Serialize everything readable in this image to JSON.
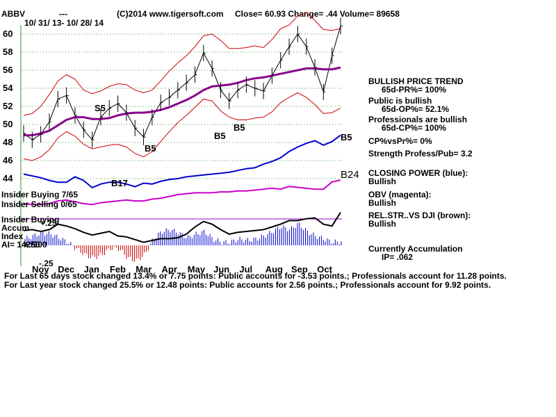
{
  "header": {
    "symbol": "ABBV",
    "dashes": "---",
    "site": "(C)2014 www.tigersoft.com",
    "quote": "Close=  60.93  Change= .44 Volume= 89658",
    "date_range": "10/ 31/ 13- 10/ 28/ 14"
  },
  "chart_data": {
    "type": "line",
    "y_ticks": [
      "60",
      "58",
      "56",
      "54",
      "52",
      "50",
      "48",
      "46",
      "44"
    ],
    "ylim": [
      43,
      61
    ],
    "months": [
      "Nov",
      "Dec",
      "Jan",
      "Feb",
      "Mar",
      "Apr",
      "May",
      "Jun",
      "Jul",
      "Aug",
      "Sep",
      "Oct"
    ],
    "grid": true,
    "series": [
      {
        "color": "#000000",
        "values": [
          49.0,
          48.3,
          48.9,
          50.3,
          52.8,
          53.2,
          51.0,
          49.4,
          48.3,
          50.8,
          51.8,
          52.3,
          51.3,
          49.6,
          48.6,
          50.8,
          52.4,
          53.0,
          53.8,
          54.6,
          55.5,
          57.9,
          56.2,
          53.8,
          52.6,
          53.8,
          54.4,
          54.0,
          53.7,
          55.4,
          57.1,
          58.6,
          60.0,
          58.6,
          56.3,
          53.6,
          57.6,
          60.9
        ]
      },
      {
        "color": "#8b008b",
        "values": [
          48.8,
          48.8,
          49.0,
          49.3,
          49.9,
          50.5,
          50.8,
          50.8,
          50.6,
          50.6,
          50.7,
          51.0,
          51.2,
          51.3,
          51.3,
          51.4,
          51.6,
          51.9,
          52.3,
          52.7,
          53.2,
          53.8,
          54.2,
          54.3,
          54.4,
          54.6,
          54.9,
          55.1,
          55.2,
          55.4,
          55.6,
          55.8,
          56.0,
          56.2,
          56.2,
          56.1,
          56.1,
          56.3
        ]
      },
      {
        "color": "#cc0000",
        "values": [
          51.0,
          51.2,
          52.0,
          53.3,
          54.8,
          55.5,
          55.0,
          53.8,
          53.4,
          53.7,
          54.2,
          54.5,
          54.4,
          53.8,
          53.5,
          53.8,
          54.8,
          55.9,
          56.8,
          57.6,
          58.6,
          59.8,
          60.0,
          59.3,
          58.4,
          58.4,
          58.5,
          58.7,
          58.5,
          59.4,
          60.6,
          61.0,
          62.0,
          62.4,
          61.5,
          60.5,
          60.4,
          60.6
        ]
      },
      {
        "color": "#cc0000",
        "values": [
          46.2,
          46.0,
          46.4,
          47.2,
          48.5,
          49.2,
          48.7,
          47.8,
          47.3,
          47.5,
          47.7,
          47.8,
          47.5,
          46.8,
          46.4,
          47.0,
          48.1,
          49.2,
          50.2,
          51.0,
          51.9,
          52.8,
          52.6,
          51.5,
          50.8,
          50.5,
          50.5,
          50.7,
          50.8,
          51.4,
          52.4,
          53.0,
          53.5,
          53.0,
          52.2,
          51.2,
          51.3,
          51.8
        ]
      },
      {
        "color": "#0000cc",
        "values": [
          44.5,
          44.3,
          44.1,
          43.8,
          43.6,
          43.6,
          44.2,
          43.8,
          43.0,
          43.4,
          43.6,
          43.6,
          43.4,
          43.1,
          43.5,
          43.4,
          43.7,
          43.9,
          44.0,
          44.2,
          44.3,
          44.4,
          44.5,
          44.6,
          44.7,
          44.9,
          45.1,
          45.2,
          45.6,
          45.9,
          46.3,
          47.0,
          47.5,
          47.9,
          48.2,
          47.7,
          48.1,
          48.8
        ]
      },
      {
        "color": "#cc00cc",
        "values": [
          42.0,
          41.9,
          41.9,
          42.0,
          42.3,
          42.4,
          42.2,
          42.0,
          41.9,
          42.1,
          42.2,
          42.3,
          42.4,
          42.3,
          42.3,
          42.5,
          42.6,
          42.8,
          43.0,
          43.1,
          43.2,
          43.2,
          43.2,
          43.3,
          43.3,
          43.4,
          43.4,
          43.5,
          43.6,
          43.7,
          43.6,
          43.9,
          43.8,
          43.7,
          43.6,
          43.6,
          44.4,
          44.6
        ]
      },
      {
        "color": "#000000",
        "values": [
          40.1,
          40.2,
          40.0,
          40.2,
          40.8,
          40.6,
          40.3,
          39.9,
          39.6,
          39.8,
          40.0,
          39.5,
          39.4,
          39.1,
          38.8,
          39.0,
          39.2,
          39.2,
          39.3,
          39.7,
          40.5,
          41.1,
          40.8,
          40.2,
          39.7,
          39.9,
          40.0,
          40.1,
          40.2,
          40.5,
          40.8,
          41.2,
          41.2,
          41.4,
          41.5,
          40.8,
          40.6,
          42.1
        ]
      },
      {
        "color": "#0000cc",
        "values": [
          0.1,
          0.15,
          0.2,
          0.18,
          0.12,
          0.05,
          -0.05,
          -0.15,
          -0.2,
          -0.15,
          -0.05,
          -0.05,
          -0.2,
          -0.25,
          -0.15,
          0.1,
          0.22,
          0.25,
          0.2,
          0.12,
          0.18,
          0.22,
          0.1,
          0.05,
          0.05,
          0.1,
          0.08,
          0.1,
          0.15,
          0.22,
          0.3,
          0.25,
          0.35,
          0.22,
          0.15,
          0.1,
          0.05,
          0.06
        ]
      }
    ],
    "markers": [
      {
        "label": "S5",
        "color": "#000000"
      },
      {
        "label": "B5",
        "color": "#000000"
      },
      {
        "label": "B5",
        "color": "#000000"
      },
      {
        "label": "B5",
        "color": "#000000"
      },
      {
        "label": "B5",
        "color": "#000000"
      },
      {
        "label": "B17",
        "color": "#000000"
      },
      {
        "label": "B24",
        "color": "#000000"
      }
    ],
    "insider_buying_frac": "7/65",
    "insider_selling_frac": "0/65",
    "accum_ticks": [
      "+.50",
      "+.25",
      "-.25"
    ]
  },
  "labels": {
    "insider_buying": "Insider Buying",
    "insider_selling": "Insider Selling",
    "insider_buying2": "Insider Buying",
    "accum": "Accum",
    "index": "Index",
    "ai": "AI= 142/200"
  },
  "panel": {
    "trend_title": "BULLISH PRICE TREND",
    "pr": "65d-PR%= 100%",
    "public_title": "Public is bullish",
    "op": "65d-OP%= 52.1%",
    "pros_title": "Professionals are bullish",
    "cp": "65d-CP%= 100%",
    "cpvspr": "CP%vsPr%=  0%",
    "strength": "Strength Profess/Pub= 3.2",
    "closing_power": "CLOSING POWER (blue):",
    "cp_state": "Bullish",
    "obv": "OBV (magenta):",
    "obv_state": "Bullish",
    "relstr": "REL.STR..VS DJI (brown):",
    "relstr_state": "Bullish",
    "accum_title": "Currently Accumulation",
    "ip": "IP=  .062"
  },
  "footer": {
    "line1": "For Last 65 days stock changed  13.4% or  7.75 points:  Public accounts for -3.53 points.;  Professionals account for  11.28 points.",
    "line2": "For Last year stock changed  25.5% or  12.48 points:  Public accounts for  2.56 points.;  Professionals account for  9.92 points."
  }
}
